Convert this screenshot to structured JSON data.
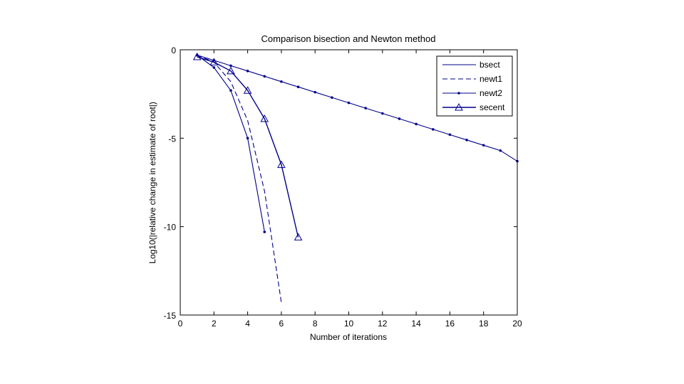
{
  "chart_data": {
    "type": "line",
    "title": "Comparison bisection and Newton method",
    "xlabel": "Number of iterations",
    "ylabel": "Log10(|relative change in estimate of root|)",
    "xlim": [
      0,
      20
    ],
    "ylim": [
      -15,
      0
    ],
    "xticks": [
      0,
      2,
      4,
      6,
      8,
      10,
      12,
      14,
      16,
      18,
      20
    ],
    "yticks": [
      0,
      -5,
      -10,
      -15
    ],
    "grid": false,
    "legend_position": "top-right",
    "line_color": "#00008b",
    "series": [
      {
        "name": "bsect",
        "style": "solid-dots",
        "x": [
          1,
          2,
          3,
          4,
          5,
          6,
          7,
          8,
          9,
          10,
          11,
          12,
          13,
          14,
          15,
          16,
          17,
          18,
          19,
          20
        ],
        "y": [
          -0.3,
          -0.6,
          -0.9,
          -1.2,
          -1.5,
          -1.8,
          -2.1,
          -2.4,
          -2.7,
          -3.0,
          -3.3,
          -3.6,
          -3.9,
          -4.2,
          -4.5,
          -4.8,
          -5.1,
          -5.4,
          -5.7,
          -6.3
        ]
      },
      {
        "name": "newt1",
        "style": "dashed",
        "x": [
          1,
          2,
          3,
          4,
          5,
          6
        ],
        "y": [
          -0.3,
          -0.7,
          -1.8,
          -4.0,
          -8.0,
          -14.3
        ]
      },
      {
        "name": "newt2",
        "style": "solid-dots",
        "x": [
          1,
          2,
          3,
          4,
          5
        ],
        "y": [
          -0.3,
          -1.0,
          -2.3,
          -5.0,
          -10.3
        ]
      },
      {
        "name": "secent",
        "style": "solid-triangles",
        "x": [
          1,
          2,
          3,
          4,
          5,
          6,
          7
        ],
        "y": [
          -0.4,
          -0.7,
          -1.2,
          -2.3,
          -3.9,
          -6.5,
          -10.6
        ]
      }
    ]
  }
}
